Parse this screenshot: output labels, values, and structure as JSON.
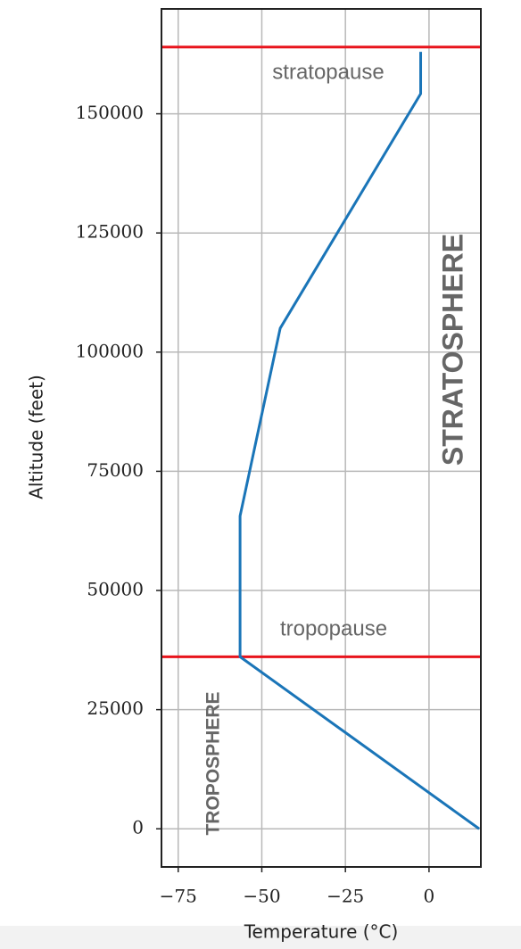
{
  "chart_data": {
    "type": "line",
    "x": [
      15,
      -56.5,
      -56.5,
      -44.5,
      -2.5,
      -2.5
    ],
    "values": [
      0,
      36089,
      65617,
      105000,
      154199,
      163000
    ],
    "color": "#1a75b8",
    "xlabel": "Temperature (°C)",
    "ylabel": "Altitude (feet)",
    "xlim": [
      -80,
      15.5
    ],
    "ylim": [
      -8000,
      172000
    ],
    "xticks": [
      {
        "value": -75,
        "label": "−75"
      },
      {
        "value": -50,
        "label": "−50"
      },
      {
        "value": -25,
        "label": "−25"
      },
      0
    ],
    "yticks": [
      0,
      25000,
      50000,
      75000,
      100000,
      125000,
      150000
    ],
    "grid": true,
    "hlines": [
      {
        "value": 36089,
        "color": "#e8141c"
      },
      {
        "value": 164000,
        "color": "#e8141c"
      }
    ],
    "annotations": [
      "stratopause",
      "tropopause",
      "STRATOSPHERE",
      "TROPOSPHERE"
    ]
  }
}
